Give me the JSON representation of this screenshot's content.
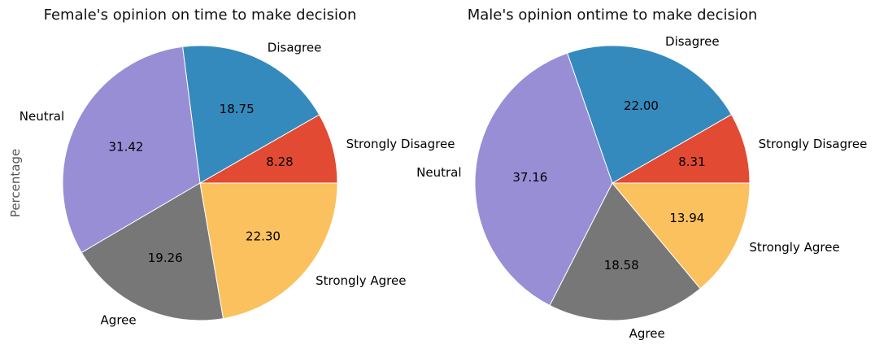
{
  "chart_data": [
    {
      "type": "pie",
      "title": "Female's opinion on time to make decision",
      "ylabel": "Percentage",
      "start_angle_deg": 0,
      "direction": "counterclockwise",
      "slices": [
        {
          "label": "Strongly Disagree",
          "value": 8.28,
          "value_label": "8.28",
          "color": "#E24A33"
        },
        {
          "label": "Disagree",
          "value": 18.75,
          "value_label": "18.75",
          "color": "#348ABD"
        },
        {
          "label": "Neutral",
          "value": 31.42,
          "value_label": "31.42",
          "color": "#988ED5"
        },
        {
          "label": "Agree",
          "value": 19.26,
          "value_label": "19.26",
          "color": "#777777"
        },
        {
          "label": "Strongly Agree",
          "value": 22.3,
          "value_label": "22.30",
          "color": "#FBC15E"
        }
      ]
    },
    {
      "type": "pie",
      "title": "Male's opinion ontime to make decision",
      "ylabel": "",
      "start_angle_deg": 0,
      "direction": "counterclockwise",
      "slices": [
        {
          "label": "Strongly Disagree",
          "value": 8.31,
          "value_label": "8.31",
          "color": "#E24A33"
        },
        {
          "label": "Disagree",
          "value": 22.0,
          "value_label": "22.00",
          "color": "#348ABD"
        },
        {
          "label": "Neutral",
          "value": 37.16,
          "value_label": "37.16",
          "color": "#988ED5"
        },
        {
          "label": "Agree",
          "value": 18.58,
          "value_label": "18.58",
          "color": "#777777"
        },
        {
          "label": "Strongly Agree",
          "value": 13.94,
          "value_label": "13.94",
          "color": "#FBC15E"
        }
      ]
    }
  ]
}
